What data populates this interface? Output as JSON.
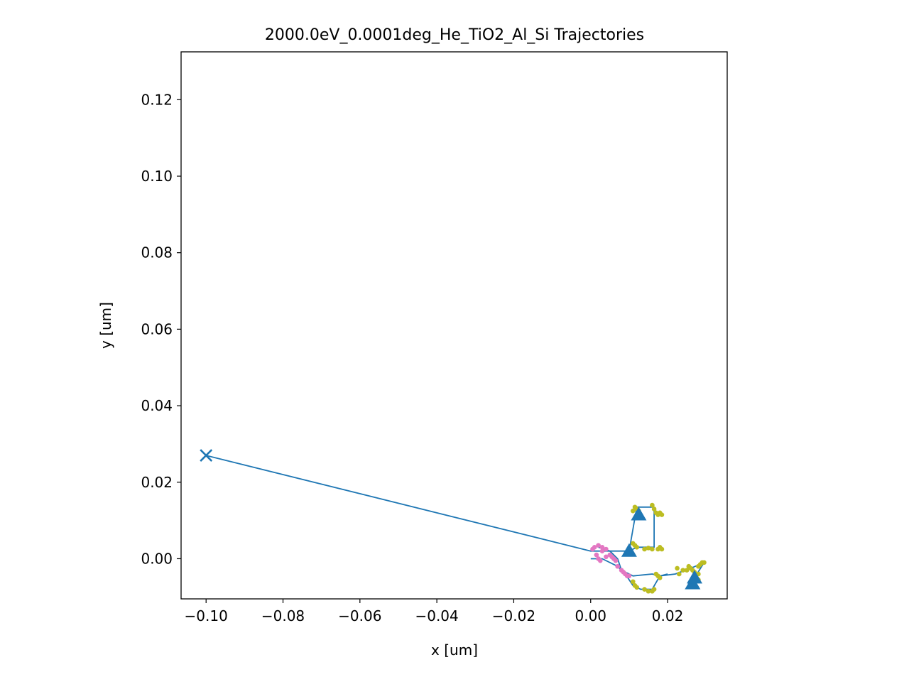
{
  "chart_data": {
    "type": "scatter",
    "title": "2000.0eV_0.0001deg_He_TiO2_Al_Si Trajectories",
    "xlabel": "x [um]",
    "ylabel": "y [um]",
    "xlim": [
      -0.1065,
      0.0355
    ],
    "ylim": [
      -0.0105,
      0.1325
    ],
    "xticks": [
      -0.1,
      -0.08,
      -0.06,
      -0.04,
      -0.02,
      0.0,
      0.02
    ],
    "xtick_labels": [
      "−0.10",
      "−0.08",
      "−0.06",
      "−0.04",
      "−0.02",
      "0.00",
      "0.02"
    ],
    "yticks": [
      0.0,
      0.02,
      0.04,
      0.06,
      0.08,
      0.1,
      0.12
    ],
    "ytick_labels": [
      "0.00",
      "0.02",
      "0.04",
      "0.06",
      "0.08",
      "0.10",
      "0.12"
    ],
    "grid": false,
    "colors": {
      "trajectory": "#1f77b4",
      "primary_collisions": "#e377c2",
      "secondary_collisions": "#bcbd22"
    },
    "trajectories": [
      [
        [
          -0.1,
          0.027
        ],
        [
          0.0,
          0.002
        ],
        [
          0.005,
          0.002
        ],
        [
          0.01,
          0.002
        ],
        [
          0.012,
          0.003
        ],
        [
          0.0165,
          0.003
        ],
        [
          0.0165,
          0.0135
        ],
        [
          0.012,
          0.0135
        ],
        [
          0.01,
          0.002
        ]
      ],
      [
        [
          0.0,
          0.0
        ],
        [
          0.003,
          0.0
        ],
        [
          0.007,
          -0.002
        ],
        [
          0.009,
          -0.004
        ],
        [
          0.011,
          -0.007
        ],
        [
          0.013,
          -0.008
        ],
        [
          0.016,
          -0.008
        ],
        [
          0.018,
          -0.0045
        ],
        [
          0.022,
          -0.004
        ],
        [
          0.026,
          -0.0025
        ],
        [
          0.0295,
          -0.001
        ],
        [
          0.027,
          -0.005
        ]
      ],
      [
        [
          0.002,
          0.003
        ],
        [
          0.005,
          0.002
        ],
        [
          0.007,
          0.0
        ],
        [
          0.008,
          -0.003
        ],
        [
          0.011,
          -0.0045
        ],
        [
          0.016,
          -0.004
        ],
        [
          0.018,
          -0.0045
        ],
        [
          0.02,
          -0.004
        ]
      ]
    ],
    "end_markers": {
      "marker": "triangle",
      "points": [
        [
          0.0125,
          0.0115
        ],
        [
          0.01,
          0.002
        ],
        [
          0.0265,
          -0.0065
        ],
        [
          0.027,
          -0.005
        ]
      ]
    },
    "start_marker": {
      "marker": "x",
      "point": [
        -0.1,
        0.027
      ]
    },
    "primary_collisions": [
      [
        0.001,
        0.003
      ],
      [
        0.002,
        0.0035
      ],
      [
        0.003,
        0.003
      ],
      [
        0.004,
        0.0025
      ],
      [
        0.0015,
        0.001
      ],
      [
        0.002,
        0.0
      ],
      [
        0.0025,
        -0.0005
      ],
      [
        0.005,
        0.001
      ],
      [
        0.0055,
        0.0005
      ],
      [
        0.006,
        0.0
      ],
      [
        0.0065,
        -0.0005
      ],
      [
        0.007,
        -0.002
      ],
      [
        0.008,
        -0.003
      ],
      [
        0.0085,
        -0.0035
      ],
      [
        0.009,
        -0.004
      ],
      [
        0.0095,
        -0.0045
      ],
      [
        0.01,
        -0.0045
      ],
      [
        0.003,
        0.002
      ],
      [
        0.0005,
        0.0025
      ],
      [
        0.004,
        0.0005
      ]
    ],
    "secondary_collisions": [
      [
        0.011,
        0.0125
      ],
      [
        0.0115,
        0.0135
      ],
      [
        0.012,
        0.013
      ],
      [
        0.0125,
        0.0125
      ],
      [
        0.016,
        0.014
      ],
      [
        0.0165,
        0.013
      ],
      [
        0.017,
        0.012
      ],
      [
        0.0175,
        0.0115
      ],
      [
        0.018,
        0.012
      ],
      [
        0.0185,
        0.0115
      ],
      [
        0.011,
        0.004
      ],
      [
        0.0115,
        0.0035
      ],
      [
        0.012,
        0.003
      ],
      [
        0.014,
        0.0025
      ],
      [
        0.015,
        0.0028
      ],
      [
        0.016,
        0.0025
      ],
      [
        0.0175,
        0.0025
      ],
      [
        0.018,
        0.003
      ],
      [
        0.0185,
        0.0025
      ],
      [
        0.011,
        -0.006
      ],
      [
        0.0115,
        -0.007
      ],
      [
        0.012,
        -0.0075
      ],
      [
        0.014,
        -0.008
      ],
      [
        0.015,
        -0.0085
      ],
      [
        0.016,
        -0.0085
      ],
      [
        0.0165,
        -0.008
      ],
      [
        0.017,
        -0.004
      ],
      [
        0.0175,
        -0.0045
      ],
      [
        0.018,
        -0.005
      ],
      [
        0.0225,
        -0.0025
      ],
      [
        0.023,
        -0.004
      ],
      [
        0.024,
        -0.003
      ],
      [
        0.025,
        -0.003
      ],
      [
        0.0255,
        -0.002
      ],
      [
        0.026,
        -0.0025
      ],
      [
        0.0265,
        -0.003
      ],
      [
        0.027,
        -0.0035
      ],
      [
        0.028,
        -0.004
      ],
      [
        0.028,
        -0.002
      ],
      [
        0.0285,
        -0.0015
      ],
      [
        0.029,
        -0.001
      ],
      [
        0.0295,
        -0.001
      ],
      [
        0.0275,
        -0.005
      ],
      [
        0.028,
        -0.0055
      ]
    ]
  }
}
